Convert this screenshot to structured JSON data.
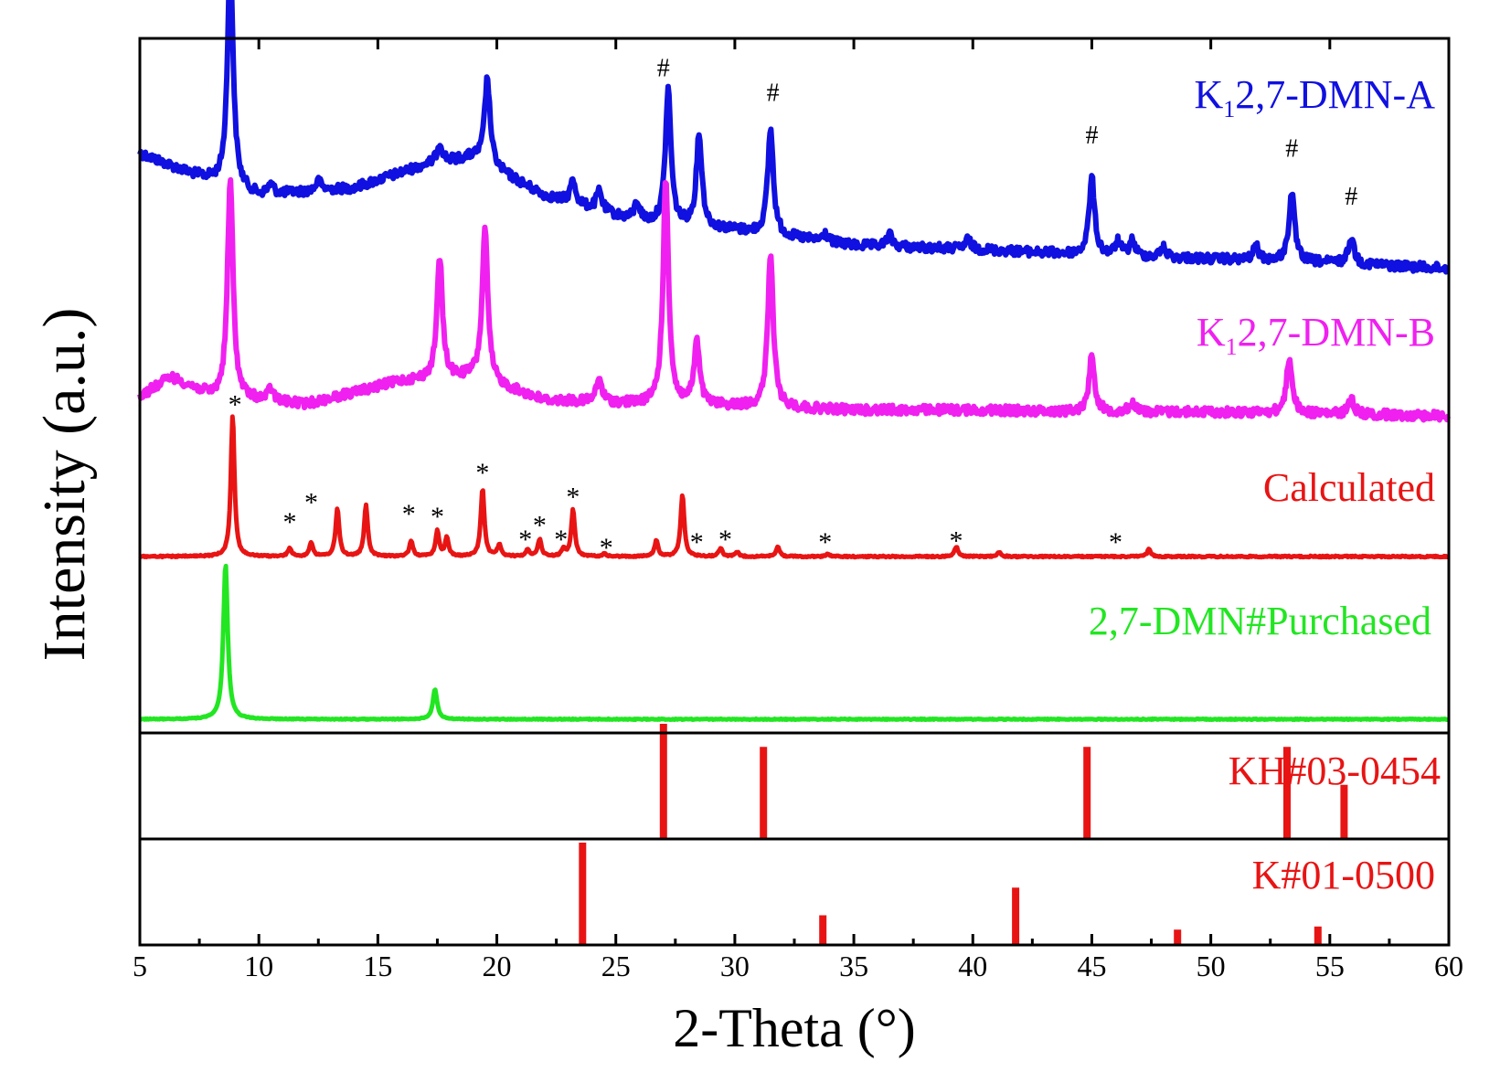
{
  "chart_data": {
    "type": "line",
    "title": "",
    "xlabel": "2-Theta (°)",
    "ylabel": "Intensity (a.u.)",
    "xlim": [
      5,
      60
    ],
    "xticks": [
      5,
      10,
      15,
      20,
      25,
      30,
      35,
      40,
      45,
      50,
      55,
      60
    ],
    "xtick_labels": [
      "5",
      "10",
      "15",
      "20",
      "25",
      "30",
      "35",
      "40",
      "45",
      "50",
      "55",
      "60"
    ],
    "grid": false,
    "legend": "inline labels at right of each trace",
    "series": [
      {
        "name": "K1,2,7-DMN-A",
        "label_main": "K",
        "label_sub": "1",
        "label_rest": "2,7-DMN-A",
        "color": "#1010e0",
        "baseline": [
          [
            5,
            0.62
          ],
          [
            7,
            0.52
          ],
          [
            10,
            0.4
          ],
          [
            14,
            0.44
          ],
          [
            17,
            0.56
          ],
          [
            19,
            0.6
          ],
          [
            22,
            0.4
          ],
          [
            26,
            0.26
          ],
          [
            30,
            0.22
          ],
          [
            35,
            0.14
          ],
          [
            40,
            0.12
          ],
          [
            45,
            0.09
          ],
          [
            50,
            0.07
          ],
          [
            55,
            0.05
          ],
          [
            60,
            0.02
          ]
        ],
        "peaks": [
          [
            8.8,
            1.2
          ],
          [
            10.5,
            0.05
          ],
          [
            12.5,
            0.05
          ],
          [
            17.6,
            0.1
          ],
          [
            19.6,
            0.45
          ],
          [
            23.2,
            0.12
          ],
          [
            24.3,
            0.1
          ],
          [
            25.9,
            0.1
          ],
          [
            27.2,
            0.7
          ],
          [
            28.5,
            0.48
          ],
          [
            31.5,
            0.55
          ],
          [
            33.8,
            0.04
          ],
          [
            36.5,
            0.06
          ],
          [
            39.8,
            0.05
          ],
          [
            45.0,
            0.4
          ],
          [
            46.1,
            0.07
          ],
          [
            46.7,
            0.08
          ],
          [
            48.0,
            0.05
          ],
          [
            51.9,
            0.07
          ],
          [
            53.4,
            0.36
          ],
          [
            55.9,
            0.14
          ]
        ],
        "markers": [
          {
            "symbol": "#",
            "x": 27.0,
            "y": 1.06
          },
          {
            "symbol": "#",
            "x": 31.6,
            "y": 0.93
          },
          {
            "symbol": "#",
            "x": 45.0,
            "y": 0.71
          },
          {
            "symbol": "#",
            "x": 53.4,
            "y": 0.64
          },
          {
            "symbol": "#",
            "x": 55.9,
            "y": 0.39
          }
        ]
      },
      {
        "name": "K1,2,7-DMN-B",
        "label_main": "K",
        "label_sub": "1",
        "label_rest": "2,7-DMN-B",
        "color": "#f020f0",
        "baseline": [
          [
            5,
            0.1
          ],
          [
            6.3,
            0.2
          ],
          [
            8,
            0.1
          ],
          [
            12,
            0.06
          ],
          [
            16,
            0.18
          ],
          [
            19,
            0.2
          ],
          [
            22,
            0.08
          ],
          [
            26,
            0.06
          ],
          [
            30,
            0.05
          ],
          [
            35,
            0.03
          ],
          [
            40,
            0.03
          ],
          [
            45,
            0.02
          ],
          [
            50,
            0.02
          ],
          [
            55,
            0.01
          ],
          [
            60,
            0.0
          ]
        ],
        "peaks": [
          [
            8.8,
            1.12
          ],
          [
            10.5,
            0.06
          ],
          [
            17.6,
            0.62
          ],
          [
            19.5,
            0.78
          ],
          [
            24.3,
            0.12
          ],
          [
            27.1,
            1.15
          ],
          [
            28.4,
            0.32
          ],
          [
            31.5,
            0.78
          ],
          [
            45.0,
            0.29
          ],
          [
            46.7,
            0.05
          ],
          [
            53.3,
            0.29
          ],
          [
            55.9,
            0.08
          ]
        ],
        "markers": []
      },
      {
        "name": "Calculated",
        "label_main": "Calculated",
        "color": "#e81414",
        "baseline": [
          [
            5,
            0.0
          ],
          [
            60,
            0.0
          ]
        ],
        "peaks": [
          [
            8.9,
            1.0
          ],
          [
            11.3,
            0.06
          ],
          [
            12.2,
            0.1
          ],
          [
            13.3,
            0.34
          ],
          [
            14.5,
            0.36
          ],
          [
            16.4,
            0.11
          ],
          [
            17.5,
            0.18
          ],
          [
            17.9,
            0.13
          ],
          [
            19.4,
            0.48
          ],
          [
            20.1,
            0.08
          ],
          [
            21.3,
            0.05
          ],
          [
            21.8,
            0.12
          ],
          [
            22.8,
            0.05
          ],
          [
            23.2,
            0.33
          ],
          [
            24.5,
            0.02
          ],
          [
            26.7,
            0.11
          ],
          [
            27.8,
            0.44
          ],
          [
            29.4,
            0.06
          ],
          [
            30.1,
            0.03
          ],
          [
            31.8,
            0.07
          ],
          [
            33.9,
            0.02
          ],
          [
            39.3,
            0.07
          ],
          [
            41.1,
            0.03
          ],
          [
            47.4,
            0.05
          ]
        ],
        "markers": [
          {
            "symbol": "*",
            "x": 9.0,
            "y": 1.1
          },
          {
            "symbol": "*",
            "x": 11.3,
            "y": 0.27
          },
          {
            "symbol": "*",
            "x": 12.2,
            "y": 0.41
          },
          {
            "symbol": "*",
            "x": 16.3,
            "y": 0.33
          },
          {
            "symbol": "*",
            "x": 17.5,
            "y": 0.31
          },
          {
            "symbol": "*",
            "x": 19.4,
            "y": 0.62
          },
          {
            "symbol": "*",
            "x": 21.2,
            "y": 0.15
          },
          {
            "symbol": "*",
            "x": 21.8,
            "y": 0.25
          },
          {
            "symbol": "*",
            "x": 22.7,
            "y": 0.15
          },
          {
            "symbol": "*",
            "x": 23.2,
            "y": 0.45
          },
          {
            "symbol": "*",
            "x": 24.6,
            "y": 0.09
          },
          {
            "symbol": "*",
            "x": 28.4,
            "y": 0.13
          },
          {
            "symbol": "*",
            "x": 29.6,
            "y": 0.15
          },
          {
            "symbol": "*",
            "x": 33.8,
            "y": 0.13
          },
          {
            "symbol": "*",
            "x": 39.3,
            "y": 0.14
          },
          {
            "symbol": "*",
            "x": 46.0,
            "y": 0.13
          }
        ]
      },
      {
        "name": "2,7-DMN#Purchased",
        "label_main": "2,7-DMN#Purchased",
        "color": "#22e622",
        "baseline": [
          [
            5,
            0.0
          ],
          [
            60,
            0.0
          ]
        ],
        "peaks": [
          [
            8.6,
            1.0
          ],
          [
            17.4,
            0.19
          ]
        ],
        "markers": []
      }
    ],
    "reference_patterns": [
      {
        "name": "KH#03-0454",
        "color": "#e81414",
        "sticks": [
          [
            27.0,
            1.0
          ],
          [
            31.2,
            0.8
          ],
          [
            44.8,
            0.8
          ],
          [
            53.2,
            0.8
          ],
          [
            55.6,
            0.47
          ]
        ]
      },
      {
        "name": "K#01-0500",
        "color": "#e81414",
        "sticks": [
          [
            23.6,
            1.0
          ],
          [
            33.7,
            0.29
          ],
          [
            41.8,
            0.56
          ],
          [
            48.6,
            0.15
          ],
          [
            54.5,
            0.18
          ]
        ]
      }
    ]
  }
}
